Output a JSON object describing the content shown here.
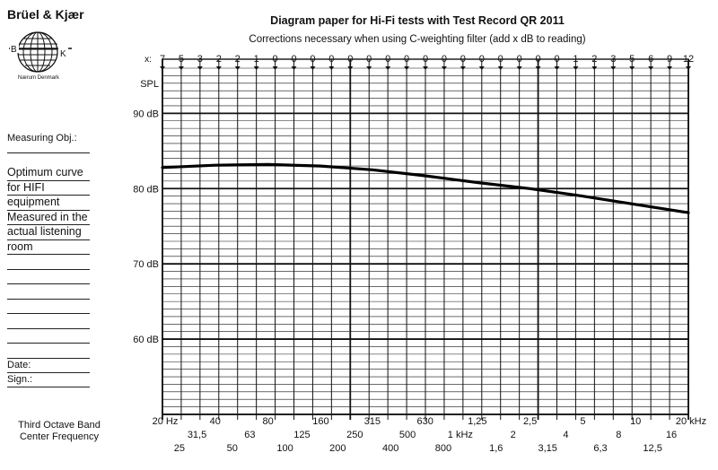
{
  "header": {
    "brand": "Brüel & Kjær",
    "logo_letters": [
      "B",
      "K"
    ],
    "logo_location": "Nærum Denmark",
    "title": "Diagram paper for Hi-Fi tests with Test Record QR 2011",
    "subtitle": "Corrections necessary when using C-weighting filter (add x dB to reading)"
  },
  "form": {
    "measuring_obj_label": "Measuring Obj.:",
    "notes": [
      "Optimum curve",
      "for HIFI",
      "equipment",
      "Measured in the",
      "actual listening",
      "room"
    ],
    "date_label": "Date:",
    "sign_label": "Sign.:"
  },
  "footer": {
    "line1": "Third Octave Band",
    "line2": "Center Frequency"
  },
  "chart_data": {
    "type": "line",
    "x_scale": "log",
    "xlim": [
      20,
      20000
    ],
    "ylim": [
      50,
      96
    ],
    "grid": true,
    "corrections_prefix": "x:",
    "corrections": [
      "7",
      "5",
      "3",
      "2",
      "2",
      "1",
      "0",
      "0",
      "0",
      "0",
      "0",
      "0",
      "0",
      "0",
      "0",
      "0",
      "0",
      "0",
      "0",
      "0",
      "0",
      "0",
      "1",
      "2",
      "3",
      "5",
      "6",
      "9",
      "12"
    ],
    "ylabel": "SPL",
    "y_ticks": [
      {
        "value": 90,
        "label": "90 dB"
      },
      {
        "value": 80,
        "label": "80 dB"
      },
      {
        "value": 70,
        "label": "70 dB"
      },
      {
        "value": 60,
        "label": "60 dB"
      }
    ],
    "x_tick_rows": [
      [
        {
          "f": 20,
          "label": "20 Hz"
        },
        {
          "f": 40,
          "label": "40"
        },
        {
          "f": 80,
          "label": "80"
        },
        {
          "f": 160,
          "label": "160"
        },
        {
          "f": 315,
          "label": "315"
        },
        {
          "f": 630,
          "label": "630"
        },
        {
          "f": 1250,
          "label": "1,25"
        },
        {
          "f": 2500,
          "label": "2,5"
        },
        {
          "f": 5000,
          "label": "5"
        },
        {
          "f": 10000,
          "label": "10"
        },
        {
          "f": 20000,
          "label": "20 kHz"
        }
      ],
      [
        {
          "f": 31.5,
          "label": "31,5"
        },
        {
          "f": 63,
          "label": "63"
        },
        {
          "f": 125,
          "label": "125"
        },
        {
          "f": 250,
          "label": "250"
        },
        {
          "f": 500,
          "label": "500"
        },
        {
          "f": 1000,
          "label": "1 kHz"
        },
        {
          "f": 2000,
          "label": "2"
        },
        {
          "f": 4000,
          "label": "4"
        },
        {
          "f": 8000,
          "label": "8"
        },
        {
          "f": 16000,
          "label": "16"
        }
      ],
      [
        {
          "f": 25,
          "label": "25"
        },
        {
          "f": 50,
          "label": "50"
        },
        {
          "f": 100,
          "label": "100"
        },
        {
          "f": 200,
          "label": "200"
        },
        {
          "f": 400,
          "label": "400"
        },
        {
          "f": 800,
          "label": "800"
        },
        {
          "f": 1600,
          "label": "1,6"
        },
        {
          "f": 3150,
          "label": "3,15"
        },
        {
          "f": 6300,
          "label": "6,3"
        },
        {
          "f": 12500,
          "label": "12,5"
        }
      ]
    ],
    "series": [
      {
        "x": [
          20,
          40,
          80,
          160,
          315,
          630,
          1250,
          2500,
          5000,
          10000,
          20000
        ],
        "y": [
          82.8,
          83.1,
          83.2,
          83.0,
          82.5,
          81.7,
          80.8,
          80.0,
          79.0,
          77.9,
          76.8
        ]
      }
    ]
  }
}
